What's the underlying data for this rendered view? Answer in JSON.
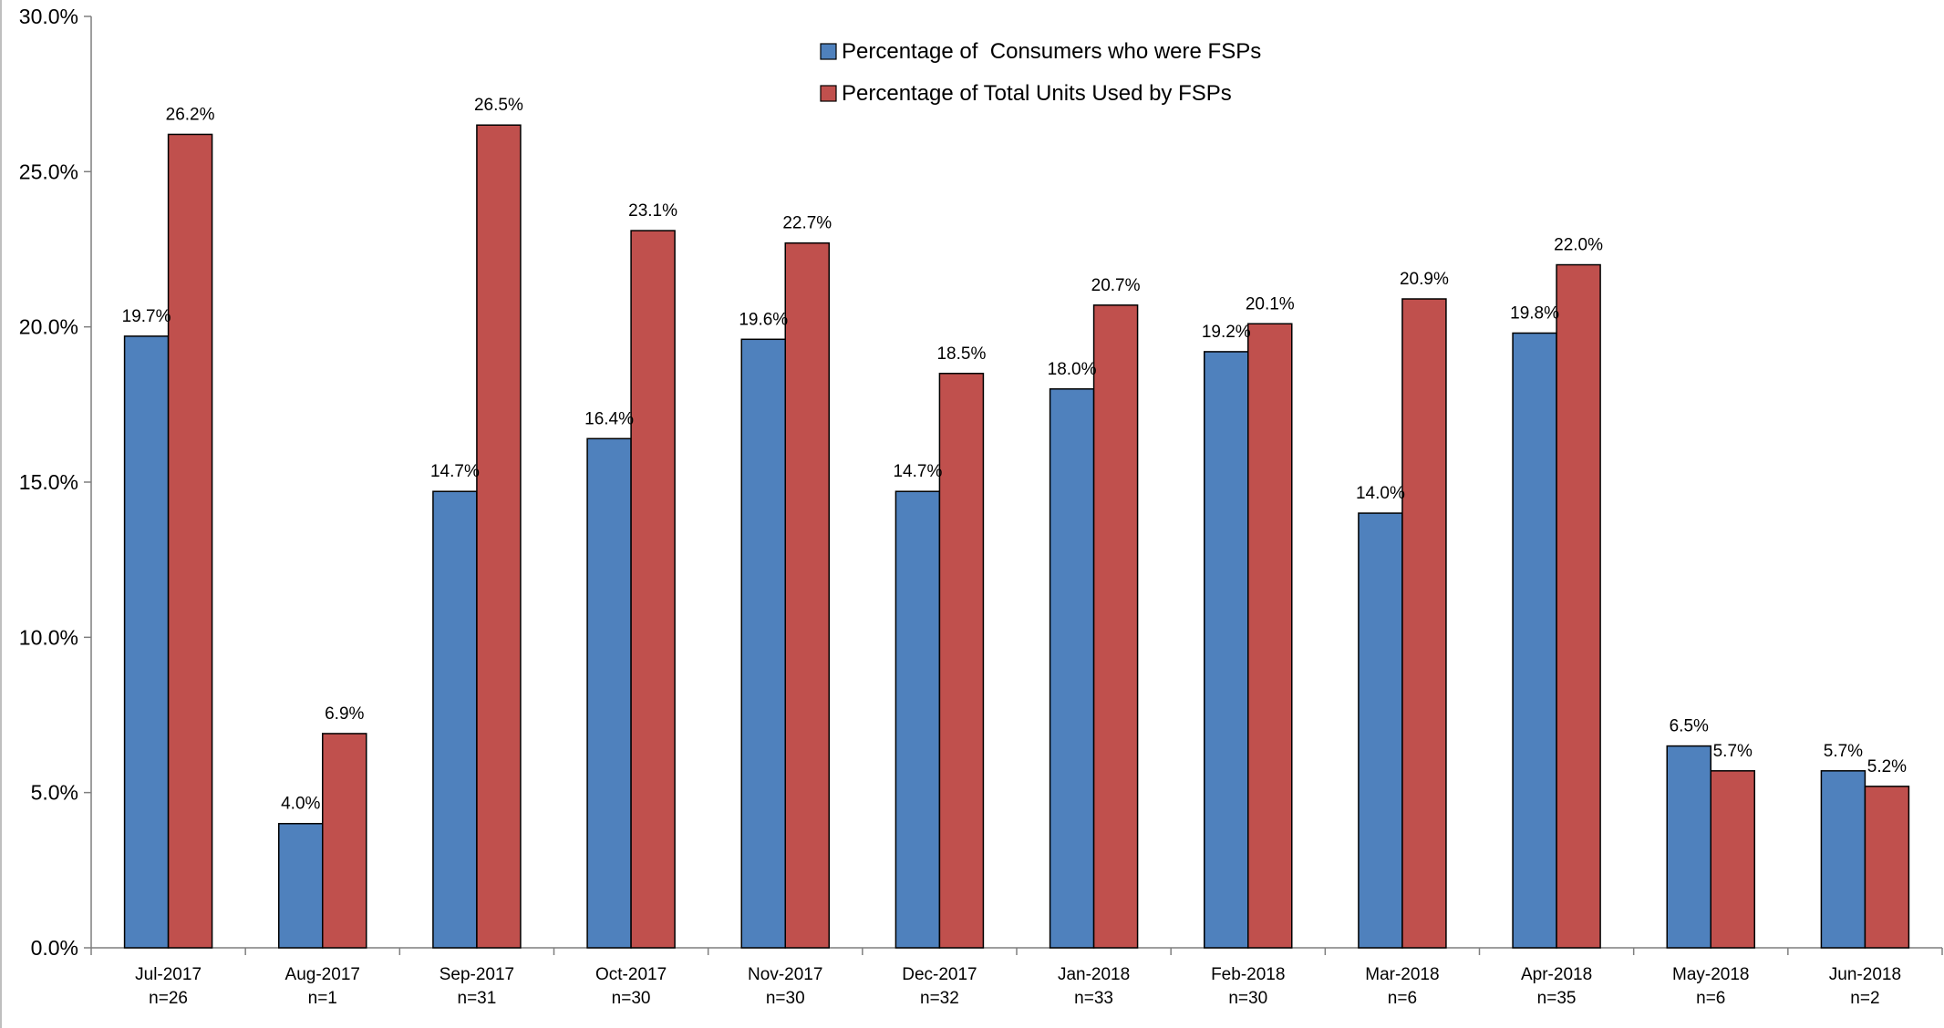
{
  "chart_data": {
    "type": "bar",
    "categories": [
      "Jul-2017",
      "Aug-2017",
      "Sep-2017",
      "Oct-2017",
      "Nov-2017",
      "Dec-2017",
      "Jan-2018",
      "Feb-2018",
      "Mar-2018",
      "Apr-2018",
      "May-2018",
      "Jun-2018"
    ],
    "category_sublabels": [
      "n=26",
      "n=1",
      "n=31",
      "n=30",
      "n=30",
      "n=32",
      "n=33",
      "n=30",
      "n=6",
      "n=35",
      "n=6",
      "n=2"
    ],
    "series": [
      {
        "name": "Percentage of  Consumers who were FSPs",
        "color": "#4f81bd",
        "values": [
          19.7,
          4.0,
          14.7,
          16.4,
          19.6,
          14.7,
          18.0,
          19.2,
          14.0,
          19.8,
          6.5,
          5.7
        ],
        "labels": [
          "19.7%",
          "4.0%",
          "14.7%",
          "16.4%",
          "19.6%",
          "14.7%",
          "18.0%",
          "19.2%",
          "14.0%",
          "19.8%",
          "6.5%",
          "5.7%"
        ]
      },
      {
        "name": "Percentage of Total Units Used by FSPs",
        "color": "#c0504d",
        "values": [
          26.2,
          6.9,
          26.5,
          23.1,
          22.7,
          18.5,
          20.7,
          20.1,
          20.9,
          22.0,
          5.7,
          5.2
        ],
        "labels": [
          "26.2%",
          "6.9%",
          "26.5%",
          "23.1%",
          "22.7%",
          "18.5%",
          "20.7%",
          "20.1%",
          "20.9%",
          "22.0%",
          "5.7%",
          "5.2%"
        ]
      }
    ],
    "yticks": [
      "0.0%",
      "5.0%",
      "10.0%",
      "15.0%",
      "20.0%",
      "25.0%",
      "30.0%"
    ],
    "ylim": [
      0,
      30
    ],
    "title": "",
    "xlabel": "",
    "ylabel": "",
    "grid": false,
    "legend_position": "top-center"
  }
}
